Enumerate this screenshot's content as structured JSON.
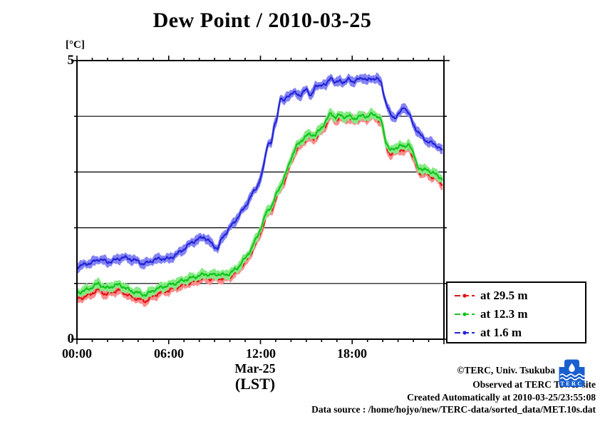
{
  "title": "Dew Point / 2010-03-25",
  "y_axis": {
    "unit_label": "[°C]",
    "top_tick_label": "5",
    "bottom_tick_label": "0",
    "min": 0,
    "max": 5,
    "gridline_values": [
      1,
      2,
      3,
      4
    ]
  },
  "x_axis": {
    "tick_labels": [
      "00:00",
      "06:00",
      "12:00",
      "18:00"
    ],
    "tick_hours": [
      0,
      6,
      12,
      18
    ],
    "minor_tick_every_hours": 1,
    "date_label": "Mar-25",
    "tz_label": "(LST)",
    "min_hour": 0,
    "max_hour": 24
  },
  "chart_data": {
    "type": "line",
    "title": "Dew Point / 2010-03-25",
    "xlabel": "Mar-25 (LST)",
    "ylabel": "[°C]",
    "xlim_hours": [
      0,
      24
    ],
    "ylim": [
      0,
      5
    ],
    "grid": "horizontal-only",
    "legend_position": "outside-right-bottom",
    "style": "errorbar-band-with-center-line",
    "jitter_degC": 0.04,
    "band_halfwidth_degC": 0.05,
    "series": [
      {
        "name": "at 29.5 m",
        "color": "#e31212",
        "band_color": "#fb8d8d",
        "seed": 1.3,
        "points": [
          [
            0,
            0.73
          ],
          [
            0.4,
            0.75
          ],
          [
            0.9,
            0.81
          ],
          [
            1.4,
            0.89
          ],
          [
            1.9,
            0.8
          ],
          [
            2.4,
            0.86
          ],
          [
            2.8,
            0.88
          ],
          [
            3.2,
            0.81
          ],
          [
            3.6,
            0.76
          ],
          [
            4,
            0.72
          ],
          [
            4.5,
            0.68
          ],
          [
            5,
            0.78
          ],
          [
            5.5,
            0.84
          ],
          [
            6,
            0.88
          ],
          [
            6.5,
            0.93
          ],
          [
            7,
            0.98
          ],
          [
            7.5,
            1.02
          ],
          [
            8,
            1.07
          ],
          [
            8.4,
            1.1
          ],
          [
            8.8,
            1.08
          ],
          [
            9.2,
            1.1
          ],
          [
            9.6,
            1.08
          ],
          [
            10,
            1.12
          ],
          [
            10.5,
            1.22
          ],
          [
            11,
            1.38
          ],
          [
            11.4,
            1.55
          ],
          [
            11.8,
            1.78
          ],
          [
            12.1,
            1.98
          ],
          [
            12.4,
            2.22
          ],
          [
            12.6,
            2.29
          ],
          [
            12.8,
            2.36
          ],
          [
            13,
            2.52
          ],
          [
            13.3,
            2.69
          ],
          [
            13.6,
            2.86
          ],
          [
            14,
            3.18
          ],
          [
            14.4,
            3.42
          ],
          [
            14.8,
            3.54
          ],
          [
            15.2,
            3.62
          ],
          [
            15.6,
            3.6
          ],
          [
            16,
            3.74
          ],
          [
            16.3,
            3.86
          ],
          [
            16.6,
            4.01
          ],
          [
            16.9,
            3.93
          ],
          [
            17.2,
            3.97
          ],
          [
            17.5,
            3.95
          ],
          [
            17.8,
            3.96
          ],
          [
            18.1,
            3.92
          ],
          [
            18.4,
            3.94
          ],
          [
            18.7,
            3.98
          ],
          [
            19,
            3.95
          ],
          [
            19.3,
            4.0
          ],
          [
            19.6,
            3.98
          ],
          [
            19.9,
            3.88
          ],
          [
            20.2,
            3.48
          ],
          [
            20.5,
            3.31
          ],
          [
            20.8,
            3.35
          ],
          [
            21.1,
            3.41
          ],
          [
            21.4,
            3.37
          ],
          [
            21.7,
            3.45
          ],
          [
            22,
            3.25
          ],
          [
            22.3,
            3.03
          ],
          [
            22.6,
            2.95
          ],
          [
            22.9,
            2.99
          ],
          [
            23.2,
            2.91
          ],
          [
            23.5,
            2.89
          ],
          [
            23.7,
            2.84
          ],
          [
            23.9,
            2.78
          ]
        ]
      },
      {
        "name": "at 12.3 m",
        "color": "#12c41c",
        "band_color": "#84ea84",
        "seed": 2.7,
        "points": [
          [
            0,
            0.84
          ],
          [
            0.4,
            0.86
          ],
          [
            0.9,
            0.92
          ],
          [
            1.4,
            1.0
          ],
          [
            1.9,
            0.91
          ],
          [
            2.4,
            0.96
          ],
          [
            2.8,
            0.98
          ],
          [
            3.2,
            0.91
          ],
          [
            3.6,
            0.86
          ],
          [
            4,
            0.83
          ],
          [
            4.5,
            0.79
          ],
          [
            5,
            0.88
          ],
          [
            5.5,
            0.93
          ],
          [
            6,
            0.97
          ],
          [
            6.5,
            1.01
          ],
          [
            7,
            1.06
          ],
          [
            7.5,
            1.1
          ],
          [
            8,
            1.14
          ],
          [
            8.4,
            1.17
          ],
          [
            8.8,
            1.15
          ],
          [
            9.2,
            1.17
          ],
          [
            9.6,
            1.15
          ],
          [
            10,
            1.18
          ],
          [
            10.5,
            1.28
          ],
          [
            11,
            1.45
          ],
          [
            11.4,
            1.62
          ],
          [
            11.8,
            1.85
          ],
          [
            12.1,
            2.05
          ],
          [
            12.4,
            2.28
          ],
          [
            12.6,
            2.35
          ],
          [
            12.8,
            2.42
          ],
          [
            13,
            2.58
          ],
          [
            13.3,
            2.75
          ],
          [
            13.6,
            2.92
          ],
          [
            14,
            3.25
          ],
          [
            14.4,
            3.48
          ],
          [
            14.8,
            3.6
          ],
          [
            15.2,
            3.68
          ],
          [
            15.6,
            3.66
          ],
          [
            16,
            3.8
          ],
          [
            16.3,
            3.92
          ],
          [
            16.6,
            4.06
          ],
          [
            16.9,
            3.98
          ],
          [
            17.2,
            4.02
          ],
          [
            17.5,
            3.99
          ],
          [
            17.8,
            4.0
          ],
          [
            18.1,
            3.96
          ],
          [
            18.4,
            3.98
          ],
          [
            18.7,
            4.02
          ],
          [
            19,
            3.99
          ],
          [
            19.3,
            4.04
          ],
          [
            19.6,
            4.02
          ],
          [
            19.9,
            3.92
          ],
          [
            20.2,
            3.55
          ],
          [
            20.5,
            3.38
          ],
          [
            20.8,
            3.42
          ],
          [
            21.1,
            3.48
          ],
          [
            21.4,
            3.44
          ],
          [
            21.7,
            3.52
          ],
          [
            22,
            3.32
          ],
          [
            22.3,
            3.1
          ],
          [
            22.6,
            3.02
          ],
          [
            22.9,
            3.06
          ],
          [
            23.2,
            2.98
          ],
          [
            23.5,
            2.96
          ],
          [
            23.7,
            2.92
          ],
          [
            23.9,
            2.86
          ]
        ]
      },
      {
        "name": "at 1.6 m",
        "color": "#2323d6",
        "band_color": "#8383f4",
        "seed": 4.1,
        "points": [
          [
            0,
            1.3
          ],
          [
            0.5,
            1.34
          ],
          [
            1,
            1.38
          ],
          [
            1.5,
            1.44
          ],
          [
            2,
            1.38
          ],
          [
            2.5,
            1.42
          ],
          [
            3,
            1.47
          ],
          [
            3.5,
            1.44
          ],
          [
            4,
            1.4
          ],
          [
            4.3,
            1.35
          ],
          [
            4.5,
            1.36
          ],
          [
            5,
            1.42
          ],
          [
            5.5,
            1.45
          ],
          [
            6,
            1.44
          ],
          [
            6.5,
            1.52
          ],
          [
            7,
            1.62
          ],
          [
            7.5,
            1.74
          ],
          [
            8,
            1.8
          ],
          [
            8.3,
            1.84
          ],
          [
            8.7,
            1.74
          ],
          [
            9.2,
            1.62
          ],
          [
            9.5,
            1.82
          ],
          [
            10,
            2.0
          ],
          [
            10.5,
            2.18
          ],
          [
            11,
            2.38
          ],
          [
            11.5,
            2.62
          ],
          [
            11.8,
            2.75
          ],
          [
            12.1,
            2.95
          ],
          [
            12.3,
            3.25
          ],
          [
            12.5,
            3.55
          ],
          [
            12.7,
            3.5
          ],
          [
            12.9,
            3.8
          ],
          [
            13.1,
            4.0
          ],
          [
            13.3,
            4.35
          ],
          [
            13.5,
            4.25
          ],
          [
            13.8,
            4.38
          ],
          [
            14.2,
            4.42
          ],
          [
            14.6,
            4.38
          ],
          [
            15,
            4.48
          ],
          [
            15.3,
            4.38
          ],
          [
            15.6,
            4.52
          ],
          [
            16,
            4.58
          ],
          [
            16.3,
            4.55
          ],
          [
            16.6,
            4.72
          ],
          [
            16.9,
            4.58
          ],
          [
            17.2,
            4.65
          ],
          [
            17.5,
            4.6
          ],
          [
            17.8,
            4.67
          ],
          [
            18.1,
            4.62
          ],
          [
            18.4,
            4.66
          ],
          [
            18.7,
            4.7
          ],
          [
            19,
            4.64
          ],
          [
            19.3,
            4.68
          ],
          [
            19.6,
            4.68
          ],
          [
            19.9,
            4.6
          ],
          [
            20.2,
            4.25
          ],
          [
            20.5,
            4.02
          ],
          [
            20.8,
            3.98
          ],
          [
            21.1,
            4.05
          ],
          [
            21.4,
            4.18
          ],
          [
            21.7,
            4.05
          ],
          [
            22,
            3.85
          ],
          [
            22.3,
            3.72
          ],
          [
            22.6,
            3.62
          ],
          [
            22.9,
            3.55
          ],
          [
            23.2,
            3.52
          ],
          [
            23.5,
            3.48
          ],
          [
            23.7,
            3.44
          ],
          [
            23.9,
            3.38
          ]
        ]
      }
    ]
  },
  "footer": {
    "line1": "©TERC, Univ. Tsukuba",
    "line2": "Observed at TERC Tower site",
    "line3": "Created Automatically at 2010-03-25/23:55:08",
    "line4": "Data source : /home/hojyo/new/TERC-data/sorted_data/MET.10s.dat",
    "logo_text": "TERC",
    "logo_color": "#1a5fd0"
  }
}
